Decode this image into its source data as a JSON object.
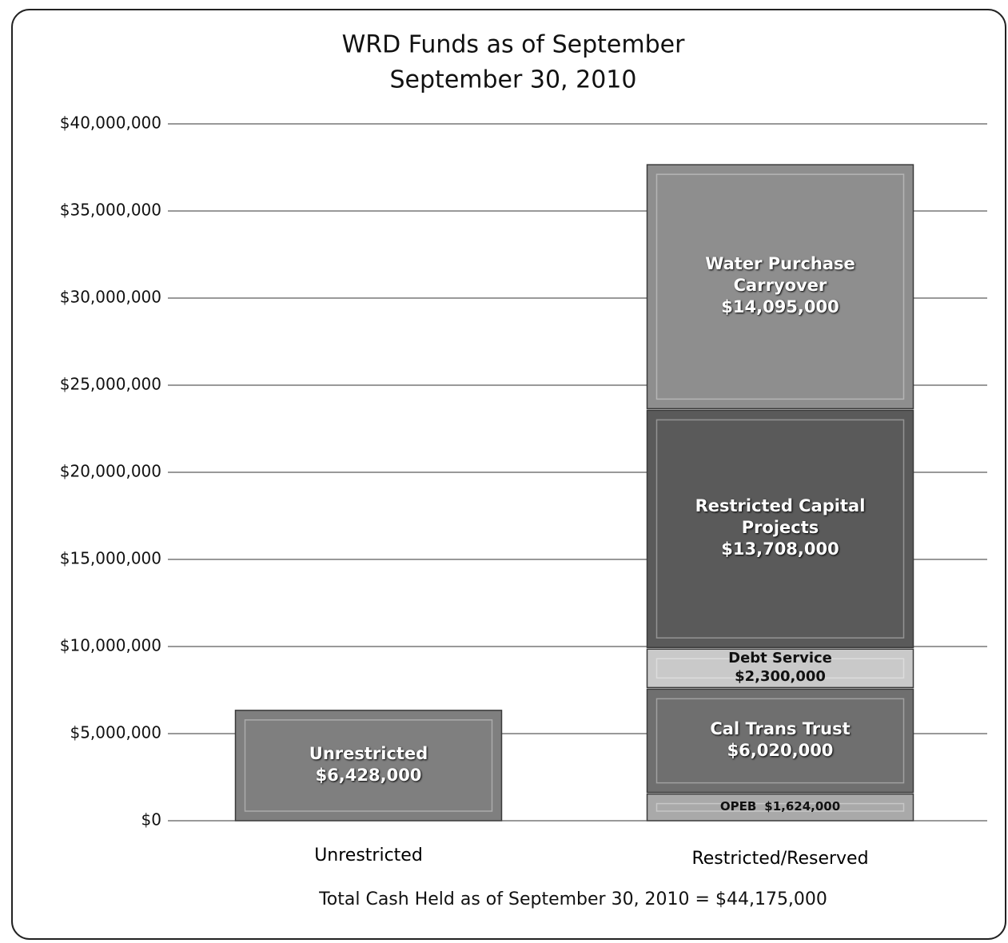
{
  "chart_data": {
    "type": "stacked_bar",
    "title": [
      "WRD Funds as of September",
      "September 30, 2010"
    ],
    "categories": [
      "Unrestricted",
      "Restricted/Reserved"
    ],
    "series": [
      {
        "name": "Unrestricted",
        "color": "#7f7f7f",
        "values": [
          6428000,
          null
        ],
        "value_labels": [
          "$6,428,000",
          null
        ]
      },
      {
        "name": "OPEB",
        "color": "#a9a9a9",
        "values": [
          null,
          1624000
        ],
        "value_labels": [
          null,
          "$1,624,000"
        ]
      },
      {
        "name": "Cal Trans Trust",
        "color": "#6f6f6f",
        "values": [
          null,
          6020000
        ],
        "value_labels": [
          null,
          "$6,020,000"
        ]
      },
      {
        "name": "Debt Service",
        "color": "#c9c9c9",
        "values": [
          null,
          2300000
        ],
        "value_labels": [
          null,
          "$2,300,000"
        ]
      },
      {
        "name": "Restricted Capital Projects",
        "color": "#5a5a5a",
        "values": [
          null,
          13708000
        ],
        "value_labels": [
          null,
          "$13,708,000"
        ]
      },
      {
        "name": "Water Purchase Carryover",
        "color": "#8e8e8e",
        "values": [
          null,
          14095000
        ],
        "value_labels": [
          null,
          "$14,095,000"
        ]
      }
    ],
    "ylim": [
      0,
      40000000
    ],
    "yticks": [
      {
        "value": 0,
        "label": "$0"
      },
      {
        "value": 5000000,
        "label": "$5,000,000"
      },
      {
        "value": 10000000,
        "label": "$10,000,000"
      },
      {
        "value": 15000000,
        "label": "$15,000,000"
      },
      {
        "value": 20000000,
        "label": "$20,000,000"
      },
      {
        "value": 25000000,
        "label": "$25,000,000"
      },
      {
        "value": 30000000,
        "label": "$30,000,000"
      },
      {
        "value": 35000000,
        "label": "$35,000,000"
      },
      {
        "value": 40000000,
        "label": "$40,000,000"
      }
    ],
    "grid": true,
    "footnote": "Total Cash Held as of September 30, 2010 = $44,175,000"
  }
}
